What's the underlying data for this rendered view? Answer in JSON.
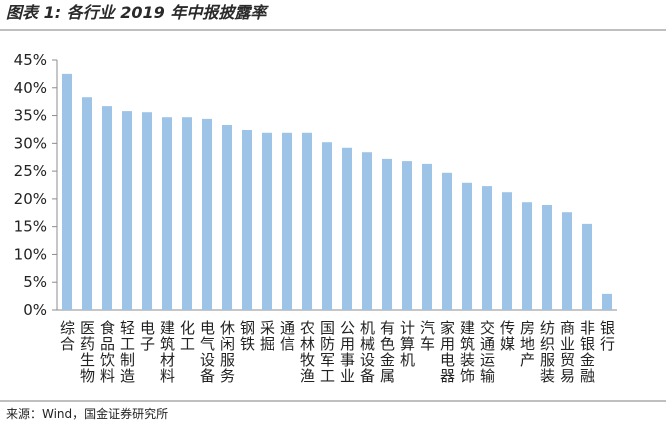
{
  "chart_data": {
    "type": "bar",
    "title": "图表 1: 各行业 2019 年中报披露率",
    "source": "来源：Wind，国金证券研究所",
    "categories": [
      "综合",
      "医药生物",
      "食品饮料",
      "轻工制造",
      "电子",
      "建筑材料",
      "化工",
      "电气设备",
      "休闲服务",
      "钢铁",
      "采掘",
      "通信",
      "农林牧渔",
      "国防军工",
      "公用事业",
      "机械设备",
      "有色金属",
      "计算机",
      "汽车",
      "家用电器",
      "建筑装饰",
      "交通运输",
      "传媒",
      "房地产",
      "纺织服装",
      "商业贸易",
      "非银金融",
      "银行"
    ],
    "values": [
      42.5,
      38.3,
      36.7,
      35.8,
      35.6,
      34.7,
      34.7,
      34.4,
      33.3,
      32.4,
      31.9,
      31.9,
      31.9,
      30.2,
      29.2,
      28.4,
      27.2,
      26.8,
      26.3,
      24.7,
      22.9,
      22.3,
      21.2,
      19.4,
      18.9,
      17.6,
      15.5,
      2.9
    ],
    "color": "#9dc3e6",
    "ylim": [
      0,
      45
    ],
    "yticks": [
      {
        "value": 0,
        "label": "0%"
      },
      {
        "value": 5,
        "label": "5%"
      },
      {
        "value": 10,
        "label": "10%"
      },
      {
        "value": 15,
        "label": "15%"
      },
      {
        "value": 20,
        "label": "20%"
      },
      {
        "value": 25,
        "label": "25%"
      },
      {
        "value": 30,
        "label": "30%"
      },
      {
        "value": 35,
        "label": "35%"
      },
      {
        "value": 40,
        "label": "40%"
      },
      {
        "value": 45,
        "label": "45%"
      }
    ]
  }
}
